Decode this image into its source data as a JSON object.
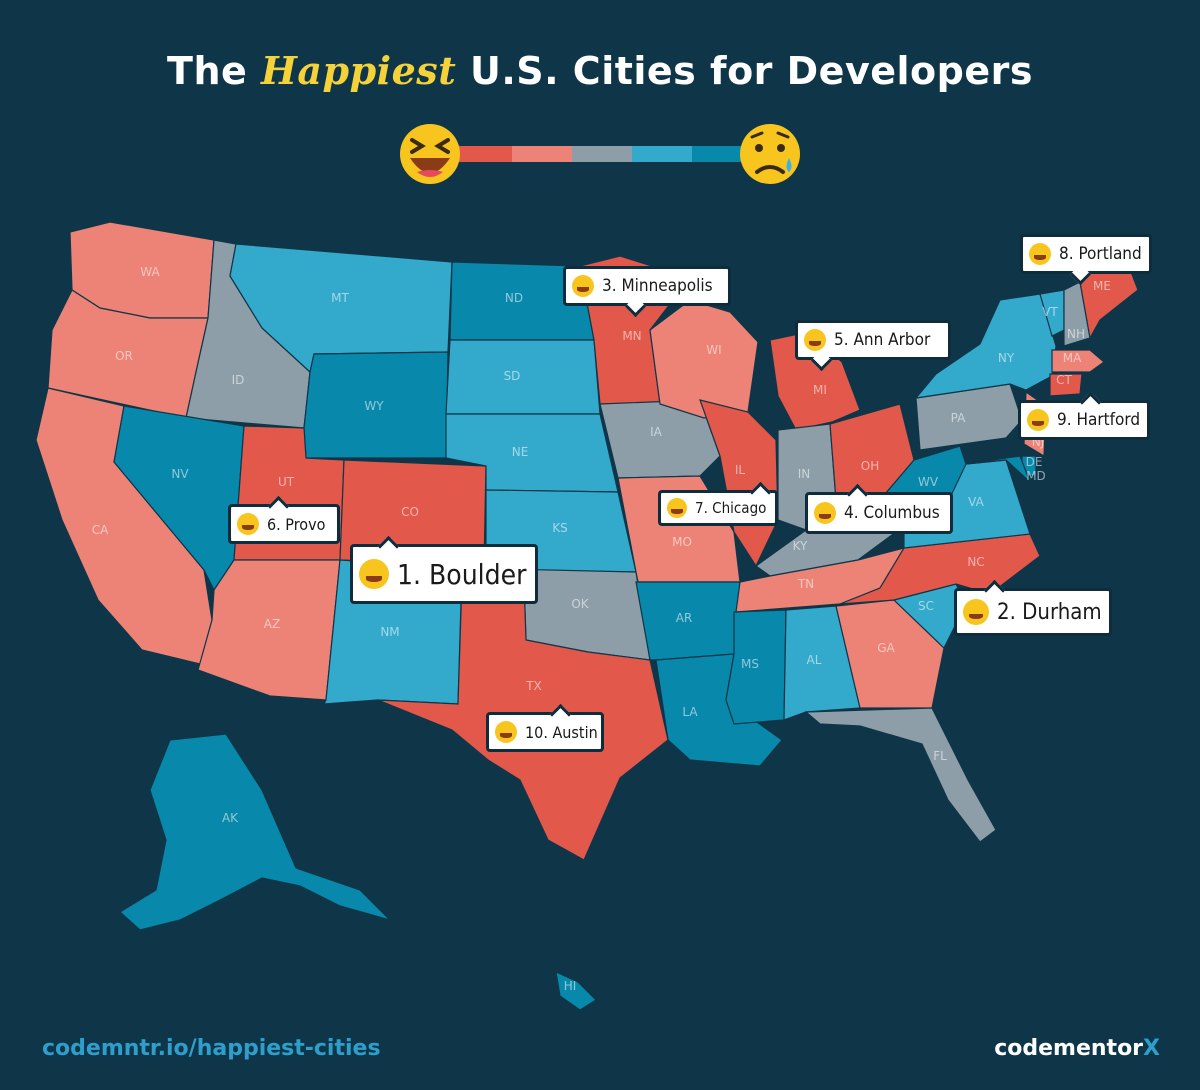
{
  "title": {
    "prefix": "The",
    "highlight": "Happiest",
    "suffix": "U.S. Cities for Developers"
  },
  "legend": {
    "colors": [
      "#e2584a",
      "#ec8376",
      "#8d9ea8",
      "#33a9cc",
      "#0888aa"
    ],
    "left_icon": "laughing-face-icon",
    "right_icon": "crying-face-icon"
  },
  "colors": {
    "background": "#0f3648",
    "tier1": "#e2584a",
    "tier2": "#ec8376",
    "tier3": "#8d9ea8",
    "tier4": "#33a9cc",
    "tier5": "#0888aa",
    "title_highlight": "#f6d23a"
  },
  "states": [
    {
      "abbr": "WA",
      "tier": "tier2"
    },
    {
      "abbr": "OR",
      "tier": "tier2"
    },
    {
      "abbr": "CA",
      "tier": "tier2"
    },
    {
      "abbr": "ID",
      "tier": "tier3"
    },
    {
      "abbr": "NV",
      "tier": "tier5"
    },
    {
      "abbr": "MT",
      "tier": "tier4"
    },
    {
      "abbr": "WY",
      "tier": "tier5"
    },
    {
      "abbr": "UT",
      "tier": "tier1"
    },
    {
      "abbr": "CO",
      "tier": "tier1"
    },
    {
      "abbr": "AZ",
      "tier": "tier2"
    },
    {
      "abbr": "NM",
      "tier": "tier4"
    },
    {
      "abbr": "ND",
      "tier": "tier5"
    },
    {
      "abbr": "SD",
      "tier": "tier4"
    },
    {
      "abbr": "NE",
      "tier": "tier4"
    },
    {
      "abbr": "KS",
      "tier": "tier4"
    },
    {
      "abbr": "OK",
      "tier": "tier3"
    },
    {
      "abbr": "TX",
      "tier": "tier1"
    },
    {
      "abbr": "MN",
      "tier": "tier1"
    },
    {
      "abbr": "IA",
      "tier": "tier3"
    },
    {
      "abbr": "MO",
      "tier": "tier2"
    },
    {
      "abbr": "AR",
      "tier": "tier5"
    },
    {
      "abbr": "LA",
      "tier": "tier5"
    },
    {
      "abbr": "WI",
      "tier": "tier2"
    },
    {
      "abbr": "IL",
      "tier": "tier1"
    },
    {
      "abbr": "MI",
      "tier": "tier1"
    },
    {
      "abbr": "IN",
      "tier": "tier3"
    },
    {
      "abbr": "OH",
      "tier": "tier1"
    },
    {
      "abbr": "KY",
      "tier": "tier3"
    },
    {
      "abbr": "TN",
      "tier": "tier2"
    },
    {
      "abbr": "MS",
      "tier": "tier5"
    },
    {
      "abbr": "AL",
      "tier": "tier4"
    },
    {
      "abbr": "GA",
      "tier": "tier2"
    },
    {
      "abbr": "FL",
      "tier": "tier3"
    },
    {
      "abbr": "SC",
      "tier": "tier4"
    },
    {
      "abbr": "NC",
      "tier": "tier1"
    },
    {
      "abbr": "VA",
      "tier": "tier4"
    },
    {
      "abbr": "WV",
      "tier": "tier5"
    },
    {
      "abbr": "PA",
      "tier": "tier3"
    },
    {
      "abbr": "NY",
      "tier": "tier4"
    },
    {
      "abbr": "VT",
      "tier": "tier4"
    },
    {
      "abbr": "NH",
      "tier": "tier3"
    },
    {
      "abbr": "ME",
      "tier": "tier1"
    },
    {
      "abbr": "MA",
      "tier": "tier2"
    },
    {
      "abbr": "CT",
      "tier": "tier1"
    },
    {
      "abbr": "NJ",
      "tier": "tier2"
    },
    {
      "abbr": "DE",
      "tier": "tier5"
    },
    {
      "abbr": "MD",
      "tier": "tier5"
    },
    {
      "abbr": "AK",
      "tier": "tier5"
    },
    {
      "abbr": "HI",
      "tier": "tier5"
    }
  ],
  "callouts": [
    {
      "label": "1. Boulder",
      "icon": "laughing-face-icon"
    },
    {
      "label": "2. Durham",
      "icon": "laughing-face-icon"
    },
    {
      "label": "3. Minneapolis",
      "icon": "laughing-face-icon"
    },
    {
      "label": "4. Columbus",
      "icon": "laughing-face-icon"
    },
    {
      "label": "5. Ann Arbor",
      "icon": "laughing-face-icon"
    },
    {
      "label": "6. Provo",
      "icon": "smiling-face-icon"
    },
    {
      "label": "7. Chicago",
      "icon": "smiling-face-icon"
    },
    {
      "label": "8. Portland",
      "icon": "smiling-face-icon"
    },
    {
      "label": "9. Hartford",
      "icon": "smiling-face-icon"
    },
    {
      "label": "10. Austin",
      "icon": "smiling-face-icon"
    }
  ],
  "footer": {
    "link": "codemntr.io/happiest-cities",
    "brand_prefix": "codementor",
    "brand_suffix": "X"
  }
}
